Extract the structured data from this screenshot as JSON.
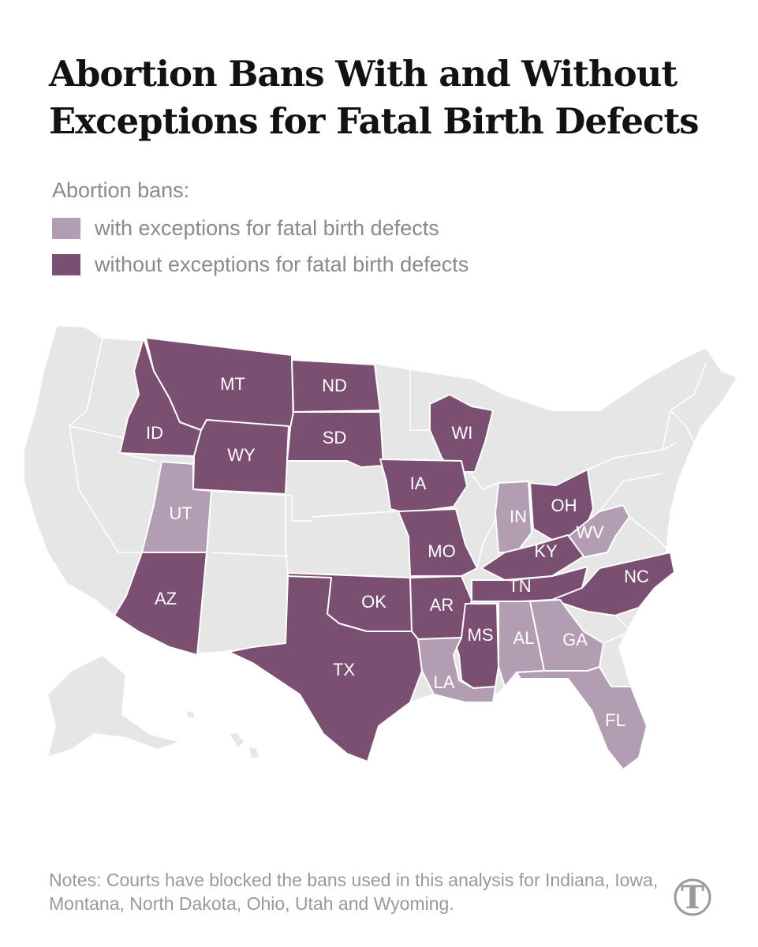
{
  "title": "Abortion Bans With and Without Exceptions for Fatal Birth Defects",
  "legend": {
    "heading": "Abortion bans:",
    "items": [
      {
        "label": "with exceptions for fatal birth defects",
        "color": "#b39db3"
      },
      {
        "label": "without exceptions for fatal birth defects",
        "color": "#7a4f72"
      }
    ]
  },
  "colors": {
    "without": "#7a4f72",
    "with": "#b39db3",
    "other": "#e6e6e6",
    "border": "#ffffff"
  },
  "states": {
    "MT": {
      "label": "MT",
      "category": "without"
    },
    "ND": {
      "label": "ND",
      "category": "without"
    },
    "SD": {
      "label": "SD",
      "category": "without"
    },
    "ID": {
      "label": "ID",
      "category": "without"
    },
    "WY": {
      "label": "WY",
      "category": "without"
    },
    "WI": {
      "label": "WI",
      "category": "without"
    },
    "IA": {
      "label": "IA",
      "category": "without"
    },
    "UT": {
      "label": "UT",
      "category": "with"
    },
    "IN": {
      "label": "IN",
      "category": "with"
    },
    "OH": {
      "label": "OH",
      "category": "without"
    },
    "WV": {
      "label": "WV",
      "category": "with"
    },
    "MO": {
      "label": "MO",
      "category": "without"
    },
    "KY": {
      "label": "KY",
      "category": "without"
    },
    "AZ": {
      "label": "AZ",
      "category": "without"
    },
    "OK": {
      "label": "OK",
      "category": "without"
    },
    "AR": {
      "label": "AR",
      "category": "without"
    },
    "TN": {
      "label": "TN",
      "category": "without"
    },
    "NC": {
      "label": "NC",
      "category": "without"
    },
    "TX": {
      "label": "TX",
      "category": "without"
    },
    "MS": {
      "label": "MS",
      "category": "without"
    },
    "AL": {
      "label": "AL",
      "category": "with"
    },
    "GA": {
      "label": "GA",
      "category": "with"
    },
    "LA": {
      "label": "LA",
      "category": "with"
    },
    "FL": {
      "label": "FL",
      "category": "with"
    }
  },
  "notes": "Notes: Courts have blocked the bans used in this analysis for Indiana, Iowa, Montana, North Dakota, Ohio, Utah and Wyoming.",
  "logo": {
    "icon": "nyt-t-logo",
    "text": "T"
  }
}
